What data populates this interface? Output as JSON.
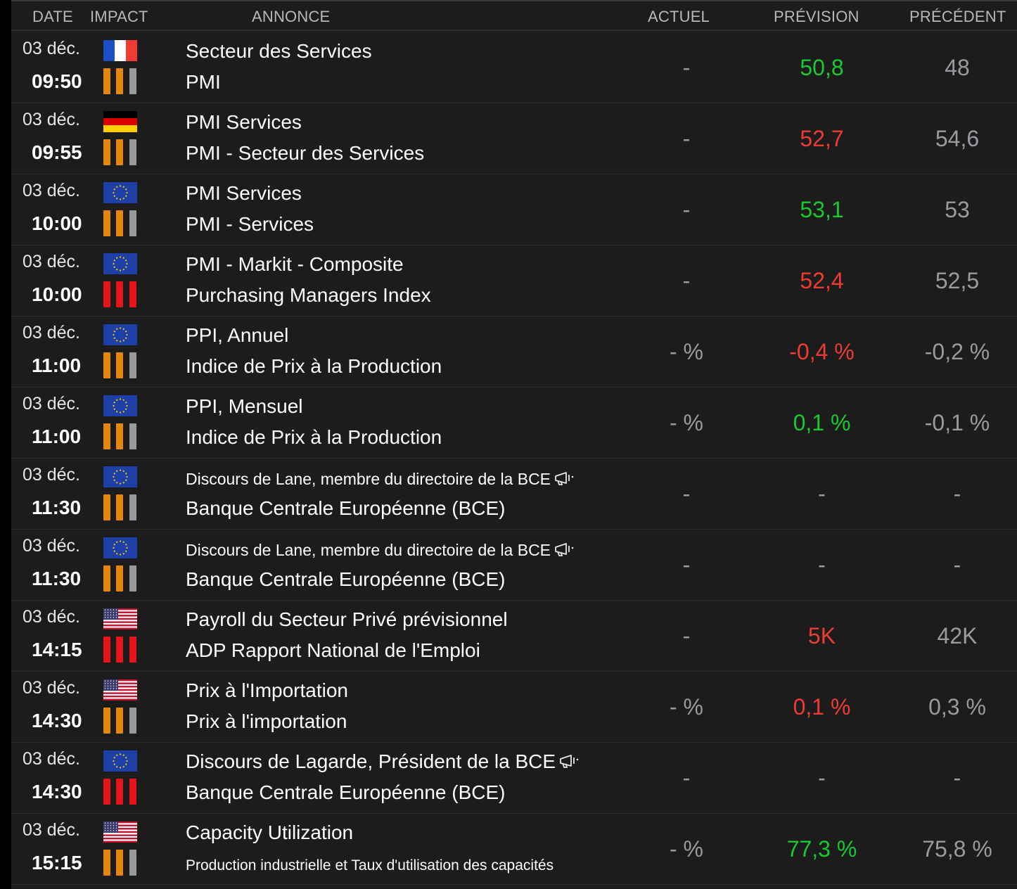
{
  "header": {
    "date": "DATE",
    "impact": "IMPACT",
    "annonce": "ANNONCE",
    "actuel": "ACTUEL",
    "prevision": "PRÉVISION",
    "precedent": "PRÉCÉDENT"
  },
  "colors": {
    "orange": "#e8860c",
    "red": "#e8141c",
    "gray": "#9a9a9e",
    "green": "#19c92e",
    "neg": "#ef3b32",
    "muted": "#9a9aa0"
  },
  "rows": [
    {
      "date": "03 déc.",
      "time": "09:50",
      "flag": "fr",
      "impact": [
        "orange",
        "orange",
        "gray"
      ],
      "title": "Secteur des Services",
      "subtitle": "PMI",
      "actuel": "-",
      "prevision": "50,8",
      "prevision_color": "green",
      "precedent": "48"
    },
    {
      "date": "03 déc.",
      "time": "09:55",
      "flag": "de",
      "impact": [
        "orange",
        "orange",
        "gray"
      ],
      "title": "PMI Services",
      "subtitle": "PMI - Secteur des Services",
      "actuel": "-",
      "prevision": "52,7",
      "prevision_color": "red",
      "precedent": "54,6"
    },
    {
      "date": "03 déc.",
      "time": "10:00",
      "flag": "eu",
      "impact": [
        "orange",
        "orange",
        "gray"
      ],
      "title": "PMI Services",
      "subtitle": "PMI - Services",
      "actuel": "-",
      "prevision": "53,1",
      "prevision_color": "green",
      "precedent": "53"
    },
    {
      "date": "03 déc.",
      "time": "10:00",
      "flag": "eu",
      "impact": [
        "red",
        "red",
        "red"
      ],
      "title": "PMI - Markit - Composite",
      "subtitle": "Purchasing Managers Index",
      "actuel": "-",
      "prevision": "52,4",
      "prevision_color": "red",
      "precedent": "52,5"
    },
    {
      "date": "03 déc.",
      "time": "11:00",
      "flag": "eu",
      "impact": [
        "orange",
        "orange",
        "gray"
      ],
      "title": "PPI, Annuel",
      "subtitle": "Indice de Prix à la Production",
      "actuel": "- %",
      "prevision": "-0,4 %",
      "prevision_color": "red",
      "precedent": "-0,2 %"
    },
    {
      "date": "03 déc.",
      "time": "11:00",
      "flag": "eu",
      "impact": [
        "orange",
        "orange",
        "gray"
      ],
      "title": "PPI, Mensuel",
      "subtitle": "Indice de Prix à la Production",
      "actuel": "- %",
      "prevision": "0,1 %",
      "prevision_color": "green",
      "precedent": "-0,1 %"
    },
    {
      "date": "03 déc.",
      "time": "11:30",
      "flag": "eu",
      "impact": [
        "orange",
        "orange",
        "gray"
      ],
      "title": "Discours de Lane, membre du directoire de la BCE",
      "title_small": true,
      "megaphone": true,
      "subtitle": "Banque Centrale Européenne (BCE)",
      "actuel": "-",
      "prevision": "-",
      "prevision_color": "muted",
      "precedent": "-"
    },
    {
      "date": "03 déc.",
      "time": "11:30",
      "flag": "eu",
      "impact": [
        "orange",
        "orange",
        "gray"
      ],
      "title": "Discours de Lane, membre du directoire de la BCE",
      "title_small": true,
      "megaphone": true,
      "subtitle": "Banque Centrale Européenne (BCE)",
      "actuel": "-",
      "prevision": "-",
      "prevision_color": "muted",
      "precedent": "-"
    },
    {
      "date": "03 déc.",
      "time": "14:15",
      "flag": "us",
      "impact": [
        "red",
        "red",
        "red"
      ],
      "title": "Payroll du Secteur Privé prévisionnel",
      "subtitle": "ADP Rapport National de l'Emploi",
      "actuel": "-",
      "prevision": "5K",
      "prevision_color": "red",
      "precedent": "42K"
    },
    {
      "date": "03 déc.",
      "time": "14:30",
      "flag": "us",
      "impact": [
        "orange",
        "orange",
        "gray"
      ],
      "title": "Prix à l'Importation",
      "subtitle": "Prix à l'importation",
      "actuel": "- %",
      "prevision": "0,1 %",
      "prevision_color": "red",
      "precedent": "0,3 %"
    },
    {
      "date": "03 déc.",
      "time": "14:30",
      "flag": "eu",
      "impact": [
        "red",
        "red",
        "red"
      ],
      "title": "Discours de Lagarde, Président de la BCE",
      "megaphone": true,
      "subtitle": "Banque Centrale Européenne (BCE)",
      "actuel": "-",
      "prevision": "-",
      "prevision_color": "muted",
      "precedent": "-"
    },
    {
      "date": "03 déc.",
      "time": "15:15",
      "flag": "us",
      "impact": [
        "orange",
        "orange",
        "gray"
      ],
      "title": "Capacity Utilization",
      "subtitle": "Production industrielle et Taux d'utilisation des capacités",
      "subtitle_small": true,
      "actuel": "- %",
      "prevision": "77,3 %",
      "prevision_color": "green",
      "precedent": "75,8 %"
    }
  ]
}
